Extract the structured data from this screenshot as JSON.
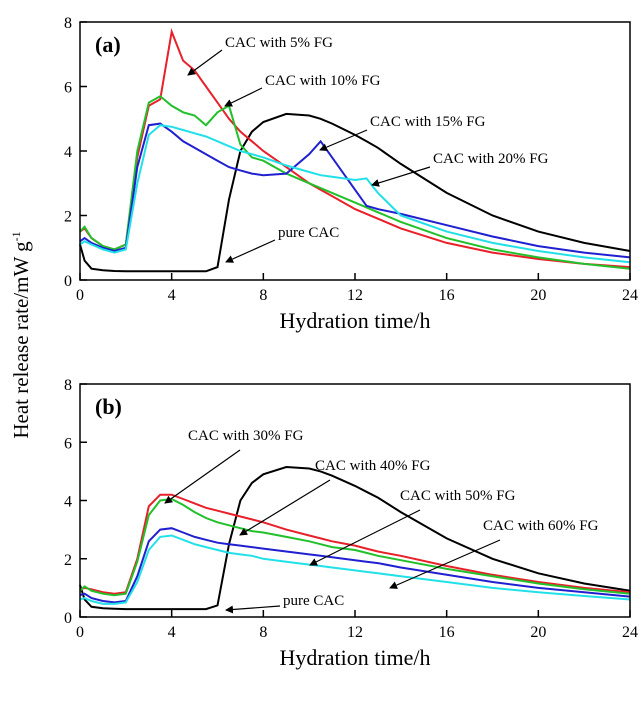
{
  "chart_data": [
    {
      "type": "line",
      "panel_label": "(a)",
      "xlabel": "Hydration time/h",
      "ylabel": "Heat release rate/mW g",
      "ylabel_superscript": "-1",
      "x": [
        0,
        0.2,
        0.5,
        1,
        1.5,
        2,
        2.5,
        3,
        3.5,
        4,
        4.5,
        5,
        5.5,
        6,
        6.5,
        7,
        7.5,
        8,
        9,
        10,
        10.5,
        11,
        12,
        12.5,
        13,
        14,
        16,
        18,
        20,
        22,
        24
      ],
      "xlim": [
        0,
        24
      ],
      "xticks": [
        0,
        4,
        8,
        12,
        16,
        20,
        24
      ],
      "ylim": [
        0,
        8
      ],
      "yticks": [
        0,
        2,
        4,
        6,
        8
      ],
      "annotation": "pure CAC",
      "series": [
        {
          "name": "pure CAC",
          "color": "#000000",
          "values": [
            1.1,
            0.6,
            0.35,
            0.3,
            0.28,
            0.27,
            0.27,
            0.27,
            0.27,
            0.27,
            0.27,
            0.27,
            0.27,
            0.4,
            2.5,
            4.0,
            4.6,
            4.9,
            5.15,
            5.1,
            5.0,
            4.85,
            4.5,
            4.3,
            4.1,
            3.6,
            2.7,
            2.0,
            1.5,
            1.15,
            0.9
          ]
        },
        {
          "name": "CAC with 5% FG",
          "color": "#e8202a",
          "values": [
            1.5,
            1.6,
            1.3,
            1.05,
            0.95,
            1.1,
            3.8,
            5.4,
            5.6,
            7.7,
            6.8,
            6.5,
            6.0,
            5.5,
            5.0,
            4.6,
            4.3,
            4.0,
            3.5,
            3.0,
            2.8,
            2.6,
            2.2,
            2.05,
            1.9,
            1.6,
            1.15,
            0.85,
            0.65,
            0.5,
            0.4
          ]
        },
        {
          "name": "CAC with 10% FG",
          "color": "#22c02a",
          "values": [
            1.5,
            1.65,
            1.3,
            1.05,
            0.95,
            1.1,
            4.0,
            5.5,
            5.7,
            5.4,
            5.2,
            5.1,
            4.8,
            5.2,
            5.4,
            4.2,
            3.8,
            3.7,
            3.3,
            3.0,
            2.85,
            2.7,
            2.4,
            2.25,
            2.1,
            1.8,
            1.3,
            0.95,
            0.7,
            0.5,
            0.35
          ]
        },
        {
          "name": "CAC with 15% FG",
          "color": "#2020d0",
          "values": [
            1.2,
            1.3,
            1.15,
            1.0,
            0.9,
            1.0,
            3.5,
            4.8,
            4.85,
            4.6,
            4.3,
            4.1,
            3.9,
            3.7,
            3.5,
            3.4,
            3.3,
            3.25,
            3.3,
            3.9,
            4.3,
            3.8,
            2.8,
            2.3,
            2.2,
            2.05,
            1.7,
            1.35,
            1.05,
            0.85,
            0.7
          ]
        },
        {
          "name": "CAC with 20% FG",
          "color": "#22e0e8",
          "values": [
            1.1,
            1.2,
            1.1,
            0.95,
            0.85,
            0.95,
            3.0,
            4.5,
            4.8,
            4.75,
            4.65,
            4.55,
            4.45,
            4.3,
            4.15,
            4.0,
            3.9,
            3.8,
            3.55,
            3.35,
            3.25,
            3.2,
            3.1,
            3.15,
            2.7,
            2.0,
            1.5,
            1.15,
            0.9,
            0.7,
            0.55
          ]
        }
      ]
    },
    {
      "type": "line",
      "panel_label": "(b)",
      "xlabel": "Hydration time/h",
      "x": [
        0,
        0.2,
        0.5,
        1,
        1.5,
        2,
        2.5,
        3,
        3.5,
        4,
        4.5,
        5,
        5.5,
        6,
        6.5,
        7,
        7.5,
        8,
        9,
        10,
        10.5,
        11,
        12,
        12.5,
        13,
        14,
        16,
        18,
        20,
        22,
        24
      ],
      "xlim": [
        0,
        24
      ],
      "xticks": [
        0,
        4,
        8,
        12,
        16,
        20,
        24
      ],
      "ylim": [
        0,
        8
      ],
      "yticks": [
        0,
        2,
        4,
        6,
        8
      ],
      "annotation": "pure CAC",
      "series": [
        {
          "name": "pure CAC",
          "color": "#000000",
          "values": [
            1.1,
            0.6,
            0.35,
            0.3,
            0.28,
            0.27,
            0.27,
            0.27,
            0.27,
            0.27,
            0.27,
            0.27,
            0.27,
            0.4,
            2.5,
            4.0,
            4.6,
            4.9,
            5.15,
            5.1,
            5.0,
            4.85,
            4.5,
            4.3,
            4.1,
            3.6,
            2.7,
            2.0,
            1.5,
            1.15,
            0.9
          ]
        },
        {
          "name": "CAC with 30% FG",
          "color": "#e8202a",
          "values": [
            0.95,
            1.0,
            0.95,
            0.85,
            0.8,
            0.85,
            2.0,
            3.8,
            4.2,
            4.2,
            4.05,
            3.9,
            3.75,
            3.65,
            3.55,
            3.45,
            3.35,
            3.25,
            3.0,
            2.8,
            2.7,
            2.6,
            2.45,
            2.35,
            2.25,
            2.1,
            1.75,
            1.45,
            1.2,
            1.0,
            0.85
          ]
        },
        {
          "name": "CAC with 40% FG",
          "color": "#22c02a",
          "values": [
            0.9,
            1.05,
            0.9,
            0.8,
            0.75,
            0.8,
            1.9,
            3.5,
            4.0,
            4.05,
            3.85,
            3.6,
            3.4,
            3.25,
            3.15,
            3.05,
            2.95,
            2.9,
            2.75,
            2.6,
            2.5,
            2.4,
            2.3,
            2.2,
            2.1,
            1.95,
            1.65,
            1.4,
            1.15,
            0.95,
            0.8
          ]
        },
        {
          "name": "CAC with 50% FG",
          "color": "#2020d0",
          "values": [
            0.75,
            0.8,
            0.65,
            0.55,
            0.5,
            0.55,
            1.4,
            2.6,
            3.0,
            3.05,
            2.9,
            2.75,
            2.65,
            2.55,
            2.5,
            2.45,
            2.4,
            2.35,
            2.25,
            2.15,
            2.1,
            2.05,
            1.95,
            1.9,
            1.85,
            1.7,
            1.45,
            1.2,
            1.0,
            0.85,
            0.7
          ]
        },
        {
          "name": "CAC with 60% FG",
          "color": "#22e0e8",
          "values": [
            0.6,
            0.65,
            0.55,
            0.45,
            0.45,
            0.5,
            1.2,
            2.3,
            2.75,
            2.8,
            2.65,
            2.5,
            2.4,
            2.3,
            2.2,
            2.15,
            2.1,
            2.0,
            1.9,
            1.8,
            1.75,
            1.7,
            1.6,
            1.55,
            1.5,
            1.4,
            1.2,
            1.0,
            0.85,
            0.72,
            0.6
          ]
        }
      ]
    }
  ]
}
